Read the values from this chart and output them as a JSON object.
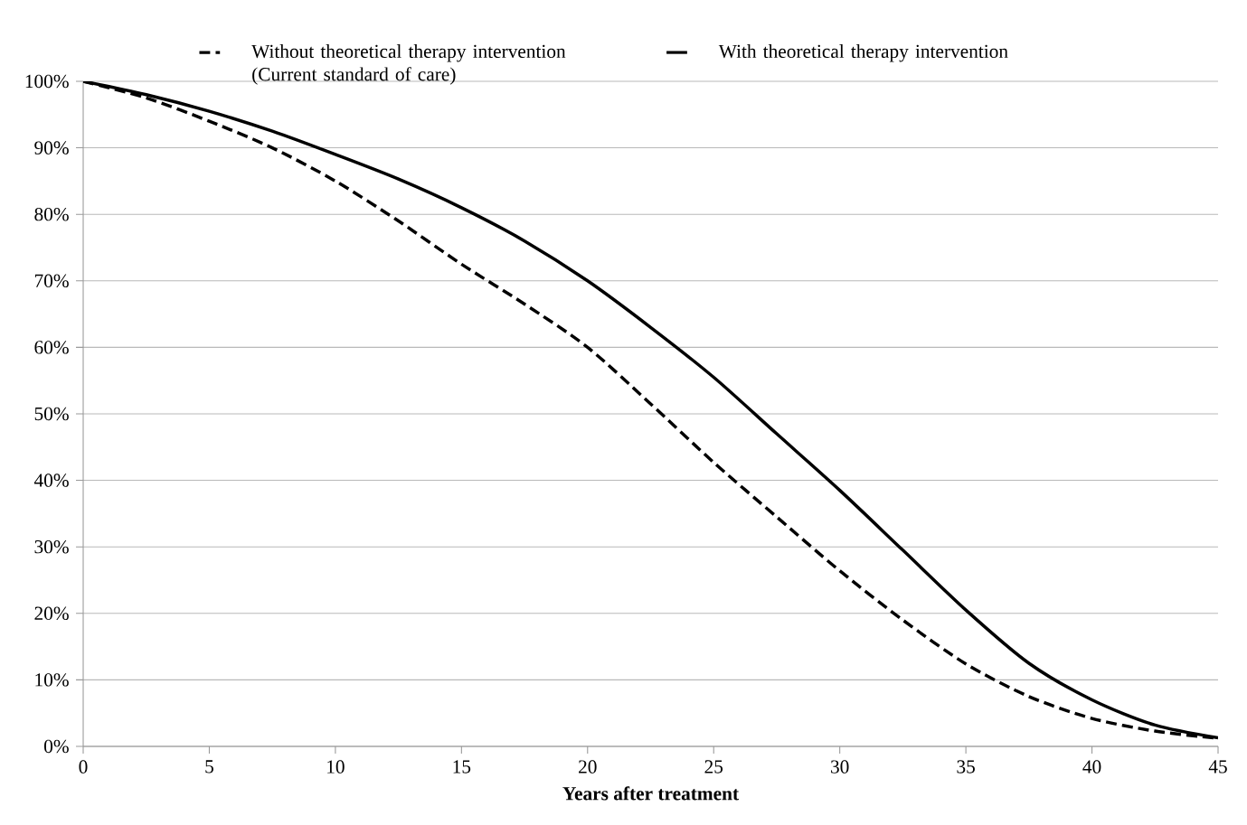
{
  "chart_data": {
    "type": "line",
    "xlabel": "Years after treatment",
    "x": [
      0,
      2.5,
      5,
      7.5,
      10,
      12.5,
      15,
      17.5,
      20,
      22.5,
      25,
      27.5,
      30,
      32.5,
      35,
      37.5,
      40,
      42.5,
      45
    ],
    "series": [
      {
        "name": "Without theoretical therapy intervention (Current standard of care)",
        "color": "#000000",
        "line_style": "dashed",
        "values": [
          100,
          97.5,
          94,
          90,
          85,
          79,
          72.5,
          66.5,
          60,
          51.5,
          42.7,
          34.5,
          26.4,
          19,
          12.4,
          7.5,
          4.2,
          2.3,
          1.2
        ]
      },
      {
        "name": "With theoretical therapy intervention",
        "color": "#000000",
        "line_style": "solid",
        "values": [
          100,
          98,
          95.5,
          92.5,
          89,
          85.3,
          81,
          76,
          70,
          63,
          55.5,
          47,
          38.5,
          29.5,
          20.5,
          12.5,
          7,
          3.2,
          1.3
        ]
      }
    ],
    "xlim": [
      0,
      45
    ],
    "xticks": [
      0,
      5,
      10,
      15,
      20,
      25,
      30,
      35,
      40,
      45
    ],
    "ylim": [
      0,
      100
    ],
    "yticks": [
      {
        "value": 0,
        "label": "0%"
      },
      {
        "value": 10,
        "label": "10%"
      },
      {
        "value": 20,
        "label": "20%"
      },
      {
        "value": 30,
        "label": "30%"
      },
      {
        "value": 40,
        "label": "40%"
      },
      {
        "value": 50,
        "label": "50%"
      },
      {
        "value": 60,
        "label": "60%"
      },
      {
        "value": 70,
        "label": "70%"
      },
      {
        "value": 80,
        "label": "80%"
      },
      {
        "value": 90,
        "label": "90%"
      },
      {
        "value": 100,
        "label": "100%"
      }
    ],
    "grid": "y",
    "legend": "top"
  }
}
